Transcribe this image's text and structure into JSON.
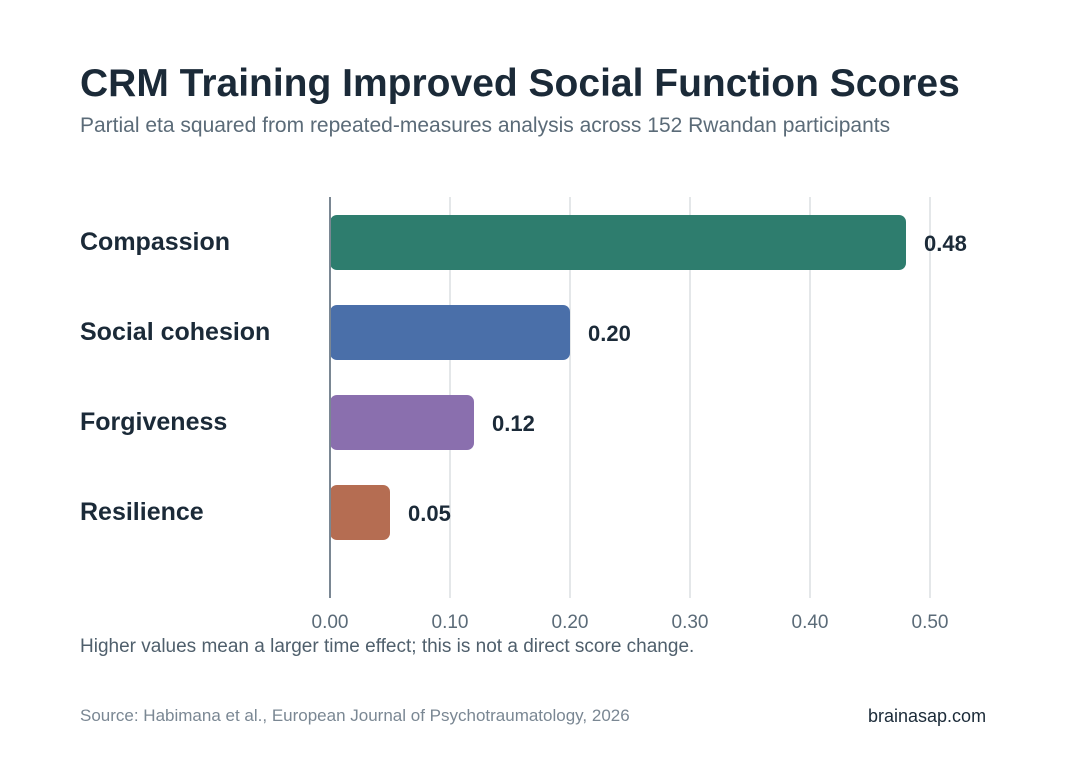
{
  "header": {
    "title": "CRM Training Improved Social Function Scores",
    "subtitle": "Partial eta squared from repeated-measures analysis across 152 Rwandan participants"
  },
  "chart_data": {
    "type": "bar",
    "orientation": "horizontal",
    "categories": [
      "Compassion",
      "Social cohesion",
      "Forgiveness",
      "Resilience"
    ],
    "values": [
      0.48,
      0.2,
      0.12,
      0.05
    ],
    "value_labels": [
      "0.48",
      "0.20",
      "0.12",
      "0.05"
    ],
    "colors": [
      "#2e7d6e",
      "#4a6fa9",
      "#8a6fae",
      "#b56d52"
    ],
    "x_ticks": [
      0.0,
      0.1,
      0.2,
      0.3,
      0.4,
      0.5
    ],
    "x_tick_labels": [
      "0.00",
      "0.10",
      "0.20",
      "0.30",
      "0.40",
      "0.50"
    ],
    "xlim": [
      0,
      0.5
    ],
    "grid": true
  },
  "footer": {
    "note": "Higher values mean a larger time effect; this is not a direct score change.",
    "source": "Source: Habimana et al., European Journal of Psychotraumatology, 2026",
    "brand": "brainasap.com"
  }
}
